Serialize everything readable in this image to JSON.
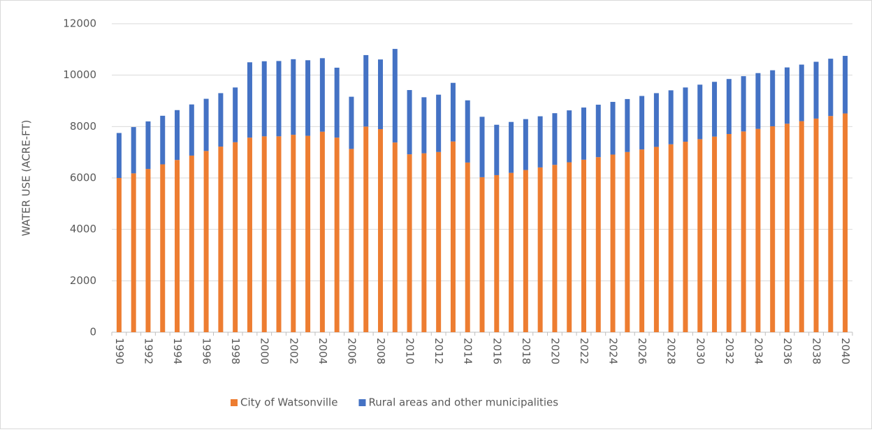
{
  "chart_data": {
    "type": "stacked_bar",
    "y_label": "WATER USE  (ACRE-FT)",
    "categories": [
      "1990",
      null,
      "1992",
      null,
      "1994",
      null,
      "1996",
      null,
      "1998",
      null,
      "2000",
      null,
      "2002",
      null,
      "2004",
      null,
      "2006",
      null,
      "2008",
      null,
      "2010",
      null,
      "2012",
      null,
      "2014",
      null,
      "2016",
      null,
      "2018",
      null,
      "2020",
      null,
      "2022",
      null,
      "2024",
      null,
      "2026",
      null,
      "2028",
      null,
      "2030",
      null,
      "2032",
      null,
      "2034",
      null,
      "2036",
      null,
      "2038",
      null,
      "2040"
    ],
    "series": [
      {
        "name": "City of Watsonville",
        "color": "#ed7d31",
        "values": [
          6000,
          6180,
          6350,
          6530,
          6700,
          6870,
          7050,
          7220,
          7390,
          7570,
          7620,
          7620,
          7680,
          7640,
          7800,
          7570,
          7130,
          8000,
          7900,
          7380,
          6920,
          6960,
          7010,
          7420,
          6600,
          6030,
          6110,
          6200,
          6310,
          6410,
          6510,
          6610,
          6710,
          6810,
          6910,
          7010,
          7110,
          7210,
          7310,
          7410,
          7510,
          7610,
          7710,
          7810,
          7910,
          8010,
          8110,
          8210,
          8310,
          8410,
          8510
        ]
      },
      {
        "name": "Rural areas and other municipalities",
        "color": "#4472c4",
        "values": [
          1750,
          1800,
          1850,
          1890,
          1940,
          1990,
          2030,
          2080,
          2130,
          2930,
          2920,
          2930,
          2940,
          2940,
          2860,
          2720,
          2030,
          2780,
          2710,
          3640,
          2500,
          2180,
          2230,
          2280,
          2420,
          2350,
          1960,
          1980,
          1980,
          1990,
          2010,
          2020,
          2030,
          2040,
          2050,
          2060,
          2080,
          2090,
          2100,
          2110,
          2120,
          2130,
          2140,
          2150,
          2170,
          2180,
          2190,
          2200,
          2210,
          2230,
          2240
        ]
      }
    ],
    "ylim": [
      0,
      12000
    ],
    "yticks": [
      0,
      2000,
      4000,
      6000,
      8000,
      10000,
      12000
    ],
    "grid": true,
    "legend": "bottom"
  }
}
